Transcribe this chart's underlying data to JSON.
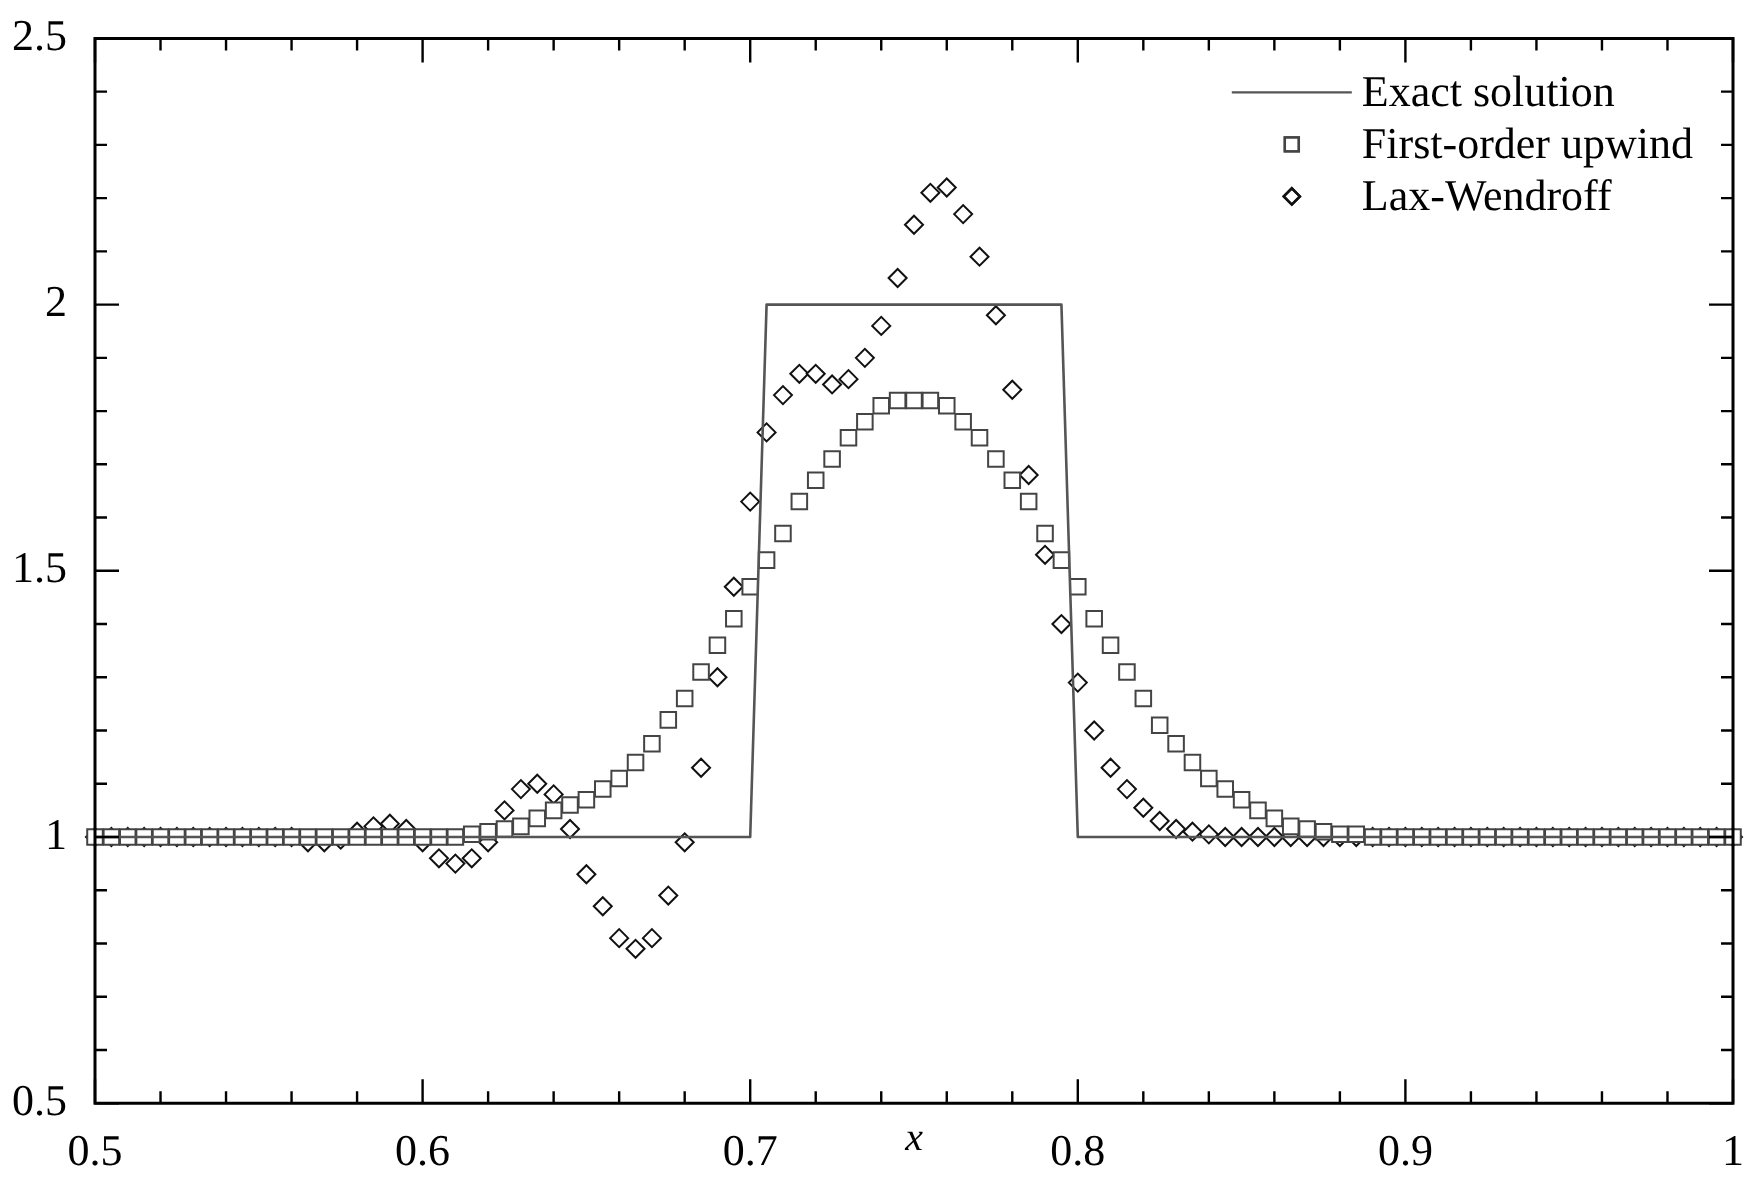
{
  "chart_data": {
    "type": "scatter",
    "xlabel": "x",
    "xlim": [
      0.5,
      1.0
    ],
    "ylim": [
      0.5,
      2.5
    ],
    "xticks": [
      0.5,
      {
        "value": 0.52,
        "label": null
      },
      {
        "value": 0.54,
        "label": null
      },
      {
        "value": 0.56,
        "label": null
      },
      {
        "value": 0.58,
        "label": null
      },
      0.6,
      {
        "value": 0.62,
        "label": null
      },
      {
        "value": 0.64,
        "label": null
      },
      {
        "value": 0.66,
        "label": null
      },
      {
        "value": 0.68,
        "label": null
      },
      0.7,
      {
        "value": 0.72,
        "label": null
      },
      {
        "value": 0.74,
        "label": null
      },
      {
        "value": 0.76,
        "label": null
      },
      {
        "value": 0.78,
        "label": null
      },
      0.8,
      {
        "value": 0.82,
        "label": null
      },
      {
        "value": 0.84,
        "label": null
      },
      {
        "value": 0.86,
        "label": null
      },
      {
        "value": 0.88,
        "label": null
      },
      0.9,
      {
        "value": 0.92,
        "label": null
      },
      {
        "value": 0.94,
        "label": null
      },
      {
        "value": 0.96,
        "label": null
      },
      {
        "value": 0.98,
        "label": null
      },
      1
    ],
    "yticks": [
      0.5,
      {
        "value": 0.6,
        "label": null
      },
      {
        "value": 0.7,
        "label": null
      },
      {
        "value": 0.8,
        "label": null
      },
      {
        "value": 0.9,
        "label": null
      },
      1,
      {
        "value": 1.1,
        "label": null
      },
      {
        "value": 1.2,
        "label": null
      },
      {
        "value": 1.3,
        "label": null
      },
      {
        "value": 1.4,
        "label": null
      },
      1.5,
      {
        "value": 1.6,
        "label": null
      },
      {
        "value": 1.7,
        "label": null
      },
      {
        "value": 1.8,
        "label": null
      },
      {
        "value": 1.9,
        "label": null
      },
      2,
      {
        "value": 2.1,
        "label": null
      },
      {
        "value": 2.2,
        "label": null
      },
      {
        "value": 2.3,
        "label": null
      },
      {
        "value": 2.4,
        "label": null
      },
      2.5
    ],
    "grid": false,
    "legend": "top right",
    "x": [
      0.5,
      0.505,
      0.51,
      0.515,
      0.52,
      0.525,
      0.53,
      0.535,
      0.54,
      0.545,
      0.55,
      0.555,
      0.56,
      0.565,
      0.57,
      0.575,
      0.58,
      0.585,
      0.59,
      0.595,
      0.6,
      0.605,
      0.61,
      0.615,
      0.62,
      0.625,
      0.63,
      0.635,
      0.64,
      0.645,
      0.65,
      0.655,
      0.66,
      0.665,
      0.67,
      0.675,
      0.68,
      0.685,
      0.69,
      0.695,
      0.7,
      0.705,
      0.71,
      0.715,
      0.72,
      0.725,
      0.73,
      0.735,
      0.74,
      0.745,
      0.75,
      0.755,
      0.76,
      0.765,
      0.77,
      0.775,
      0.78,
      0.785,
      0.79,
      0.795,
      0.8,
      0.805,
      0.81,
      0.815,
      0.82,
      0.825,
      0.83,
      0.835,
      0.84,
      0.845,
      0.85,
      0.855,
      0.86,
      0.865,
      0.87,
      0.875,
      0.88,
      0.885,
      0.89,
      0.895,
      0.9,
      0.905,
      0.91,
      0.915,
      0.92,
      0.925,
      0.93,
      0.935,
      0.94,
      0.945,
      0.95,
      0.955,
      0.96,
      0.965,
      0.97,
      0.975,
      0.98,
      0.985,
      0.99,
      0.995,
      1.0
    ],
    "series": [
      {
        "name": "Exact solution",
        "type": "line",
        "marker": "none",
        "line_style": "solid",
        "color": "#555555",
        "x": [
          0.5,
          0.7,
          0.705,
          0.795,
          0.8,
          1.0
        ],
        "values": [
          1,
          1,
          2,
          2,
          1,
          1
        ]
      },
      {
        "name": "First-order upwind",
        "marker": "square",
        "color": "#444444",
        "values": [
          1,
          1,
          1,
          1,
          1,
          1,
          1,
          1,
          1,
          1,
          1,
          1,
          1,
          1,
          1,
          1,
          1,
          1,
          1,
          1,
          1,
          1,
          1,
          1.005,
          1.01,
          1.015,
          1.02,
          1.035,
          1.05,
          1.06,
          1.07,
          1.09,
          1.11,
          1.14,
          1.175,
          1.22,
          1.26,
          1.31,
          1.36,
          1.41,
          1.47,
          1.52,
          1.57,
          1.63,
          1.67,
          1.71,
          1.75,
          1.78,
          1.81,
          1.82,
          1.82,
          1.82,
          1.81,
          1.78,
          1.75,
          1.71,
          1.67,
          1.63,
          1.57,
          1.52,
          1.47,
          1.41,
          1.36,
          1.31,
          1.26,
          1.21,
          1.175,
          1.14,
          1.11,
          1.09,
          1.07,
          1.05,
          1.035,
          1.02,
          1.015,
          1.01,
          1.005,
          1.005,
          1,
          1,
          1,
          1,
          1,
          1,
          1,
          1,
          1,
          1,
          1,
          1,
          1,
          1,
          1,
          1,
          1,
          1,
          1,
          1,
          1,
          1,
          1
        ]
      },
      {
        "name": "Lax-Wendroff",
        "marker": "diamond",
        "color": "#111111",
        "values": [
          1,
          1,
          1,
          1,
          1,
          1,
          1,
          1,
          1,
          1,
          1,
          1,
          1,
          0.99,
          0.99,
          0.995,
          1.01,
          1.02,
          1.025,
          1.015,
          0.99,
          0.96,
          0.95,
          0.96,
          0.99,
          1.05,
          1.09,
          1.1,
          1.08,
          1.015,
          0.93,
          0.87,
          0.81,
          0.79,
          0.81,
          0.89,
          0.99,
          1.13,
          1.3,
          1.47,
          1.63,
          1.76,
          1.83,
          1.87,
          1.87,
          1.85,
          1.86,
          1.9,
          1.96,
          2.05,
          2.15,
          2.21,
          2.22,
          2.17,
          2.09,
          1.98,
          1.84,
          1.68,
          1.53,
          1.4,
          1.29,
          1.2,
          1.13,
          1.09,
          1.055,
          1.03,
          1.015,
          1.01,
          1.005,
          1,
          1,
          1,
          1,
          1,
          1,
          1,
          1,
          1,
          1,
          1,
          1,
          1,
          1,
          1,
          1,
          1,
          1,
          1,
          1,
          1,
          1,
          1,
          1,
          1,
          1,
          1,
          1,
          1,
          1,
          1,
          1
        ]
      }
    ]
  }
}
